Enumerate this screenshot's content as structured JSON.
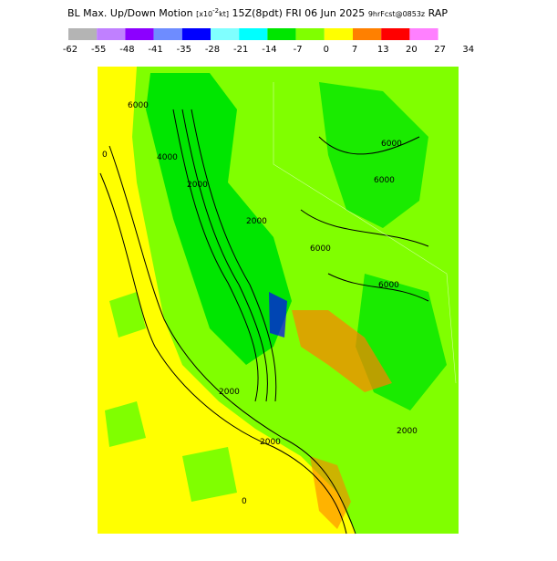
{
  "header": {
    "title": "BL Max. Up/Down Motion",
    "units_open": "[x10",
    "units_exp": "-2",
    "units_close": "kt]",
    "valid": "15Z(8pdt) FRI 06 Jun 2025",
    "forecast": "9hrFcst@0853z",
    "model": "RAP"
  },
  "colorbar": {
    "colors": [
      "#b4b4b4",
      "#c080ff",
      "#8c00ff",
      "#6e8cff",
      "#0000ff",
      "#80ffff",
      "#00ffff",
      "#00e600",
      "#80ff00",
      "#ffff00",
      "#ff8000",
      "#ff0000",
      "#ff80ff"
    ],
    "labels": [
      -62,
      -55,
      -48,
      -41,
      -35,
      -28,
      -21,
      -14,
      -7,
      0,
      7,
      13,
      20,
      27,
      34
    ]
  },
  "map": {
    "contour_labels": [
      "6000",
      "4000",
      "2000",
      "2000",
      "0",
      "6000",
      "6000",
      "6000",
      "6000",
      "2000",
      "2000",
      "2000",
      "0"
    ]
  }
}
